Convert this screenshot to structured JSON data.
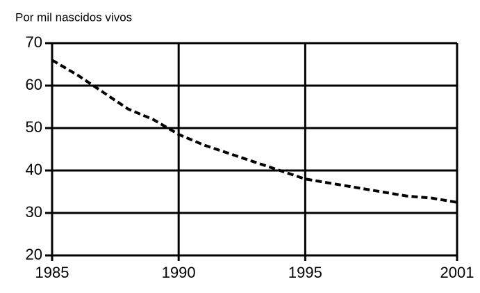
{
  "chart_data": {
    "type": "line",
    "y_label": "Por mil nascidos vivos",
    "x": [
      1985,
      1986,
      1987,
      1988,
      1989,
      1990,
      1991,
      1992,
      1993,
      1994,
      1995,
      1996,
      1997,
      1998,
      1999,
      2000,
      2001
    ],
    "series": [
      {
        "name": null,
        "color": "#000000",
        "values": [
          66,
          62.5,
          58.5,
          54.5,
          52,
          48.5,
          46,
          44,
          42,
          40,
          38,
          37,
          36,
          35,
          34,
          33.5,
          32.5
        ]
      }
    ],
    "xlim": [
      1985,
      2001
    ],
    "xticks": [
      1985,
      1990,
      1995,
      2001
    ],
    "ylim": [
      20,
      70
    ],
    "yticks": [
      20,
      30,
      40,
      50,
      60,
      70
    ],
    "grid": true
  }
}
